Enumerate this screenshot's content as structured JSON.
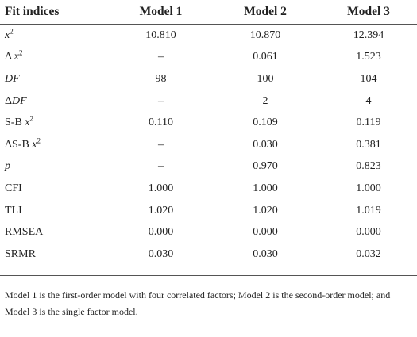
{
  "table": {
    "header": [
      "Fit indices",
      "Model 1",
      "Model 2",
      "Model 3"
    ],
    "rows": [
      {
        "label": [
          "x",
          "2"
        ],
        "cells": [
          "10.810",
          "10.870",
          "12.394"
        ]
      },
      {
        "label": [
          "Δ ",
          "x",
          "2"
        ],
        "cells": [
          "–",
          "0.061",
          "1.523"
        ]
      },
      {
        "label": [
          "DF"
        ],
        "cells": [
          "98",
          "100",
          "104"
        ]
      },
      {
        "label": [
          "Δ",
          "DF"
        ],
        "cells": [
          "–",
          "2",
          "4"
        ]
      },
      {
        "label": [
          "S-B ",
          "x",
          "2"
        ],
        "cells": [
          "0.110",
          "0.109",
          "0.119"
        ]
      },
      {
        "label": [
          "ΔS-B ",
          "x",
          "2"
        ],
        "cells": [
          "–",
          "0.030",
          "0.381"
        ]
      },
      {
        "label": [
          "p"
        ],
        "cells": [
          "–",
          "0.970",
          "0.823"
        ]
      },
      {
        "label": [
          "CFI"
        ],
        "cells": [
          "1.000",
          "1.000",
          "1.000"
        ]
      },
      {
        "label": [
          "TLI"
        ],
        "cells": [
          "1.020",
          "1.020",
          "1.019"
        ]
      },
      {
        "label": [
          "RMSEA"
        ],
        "cells": [
          "0.000",
          "0.000",
          "0.000"
        ]
      },
      {
        "label": [
          "SRMR"
        ],
        "cells": [
          "0.030",
          "0.030",
          "0.032"
        ]
      }
    ],
    "footnote": "Model 1 is the first-order model with four correlated factors; Model 2 is the second-order model; and Model 3 is the single factor model."
  }
}
